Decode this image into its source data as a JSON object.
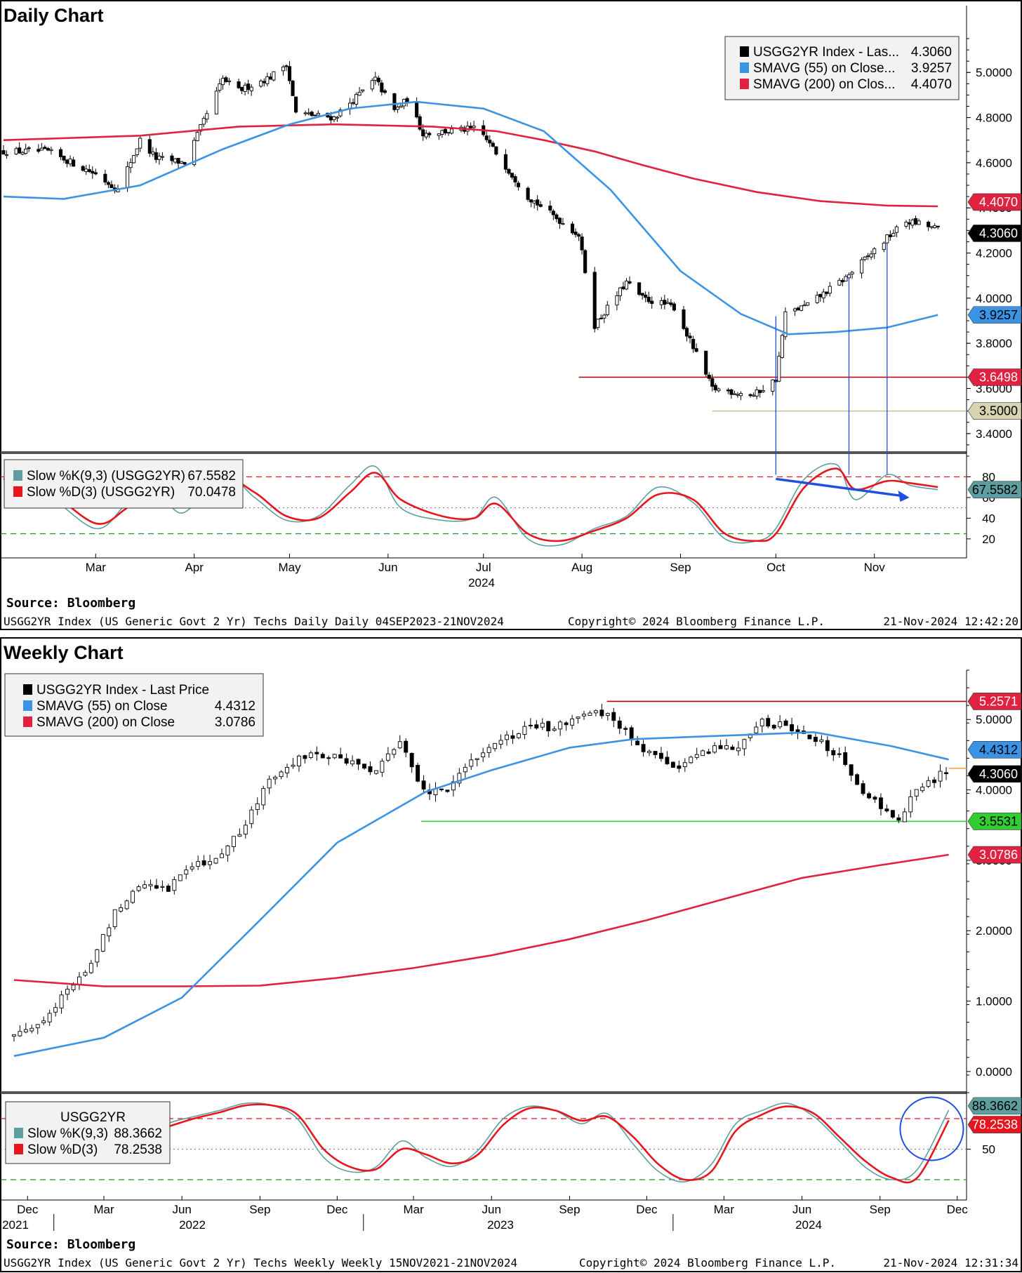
{
  "daily": {
    "title": "Daily Chart",
    "source": "Source:  Bloomberg",
    "footer_left": "USGG2YR Index (US Generic Govt 2 Yr) Techs Daily  Daily 04SEP2023-21NOV2024",
    "footer_mid": "Copyright© 2024 Bloomberg Finance L.P.",
    "footer_right": "21-Nov-2024 12:42:20",
    "year_label": "2024",
    "legend": [
      {
        "label": "USGG2YR Index - Las...",
        "value": "4.3060",
        "color": "#000000"
      },
      {
        "label": "SMAVG (55)  on Close...",
        "value": "3.9257",
        "color": "#3b93e6"
      },
      {
        "label": "SMAVG (200)  on Clos...",
        "value": "4.4070",
        "color": "#e0213f"
      }
    ],
    "osc_legend": [
      {
        "label": "Slow %K(9,3) (USGG2YR)",
        "value": "67.5582",
        "color": "#5f9ea0"
      },
      {
        "label": "Slow %D(3) (USGG2YR)",
        "value": "70.0478",
        "color": "#e8141e"
      }
    ],
    "tags": [
      {
        "text": "4.4070",
        "value": 4.407,
        "bg": "#e0213f",
        "fg": "#ffffff"
      },
      {
        "text": "4.3060",
        "value": 4.306,
        "bg": "#000000",
        "fg": "#ffffff"
      },
      {
        "text": "3.9257",
        "value": 3.9257,
        "bg": "#3b93e6",
        "fg": "#000000"
      },
      {
        "text": "3.6498",
        "value": 3.6498,
        "bg": "#e0213f",
        "fg": "#ffffff"
      },
      {
        "text": "3.5000",
        "value": 3.5,
        "bg": "#d8d3b0",
        "fg": "#000000"
      }
    ],
    "osc_tag": {
      "text": "67.5582",
      "value": 67.5582,
      "bg": "#5f9ea0",
      "fg": "#000000"
    }
  },
  "weekly": {
    "title": "Weekly Chart",
    "source": "Source:  Bloomberg",
    "footer_left": "USGG2YR Index (US Generic Govt 2 Yr) Techs Weekly  Weekly 15NOV2021-21NOV2024",
    "footer_mid": "Copyright© 2024 Bloomberg Finance L.P.",
    "footer_right": "21-Nov-2024 12:31:34",
    "legend": [
      {
        "label": "USGG2YR Index - Last Price",
        "value": "",
        "color": "#000000"
      },
      {
        "label": "SMAVG (55)  on Close",
        "value": "4.4312",
        "color": "#3b93e6"
      },
      {
        "label": "SMAVG (200)  on Close",
        "value": "3.0786",
        "color": "#e0213f"
      }
    ],
    "osc_title": "USGG2YR",
    "osc_legend": [
      {
        "label": "Slow %K(9,3)",
        "value": "88.3662",
        "color": "#5f9ea0"
      },
      {
        "label": "Slow %D(3)",
        "value": "78.2538",
        "color": "#e8141e"
      }
    ],
    "tags": [
      {
        "text": "5.2571",
        "value": 5.2571,
        "bg": "#e0213f",
        "fg": "#ffffff"
      },
      {
        "text": "4.4312",
        "value": 4.4312,
        "bg": "#3b93e6",
        "fg": "#000000"
      },
      {
        "text": "4.3060",
        "value": 4.306,
        "bg": "#000000",
        "fg": "#ffffff"
      },
      {
        "text": "3.5531",
        "value": 3.5531,
        "bg": "#33cc33",
        "fg": "#000000"
      },
      {
        "text": "3.0786",
        "value": 3.0786,
        "bg": "#e0213f",
        "fg": "#ffffff"
      }
    ],
    "osc_tags": [
      {
        "text": "88.3662",
        "value": 88.3662,
        "bg": "#5f9ea0",
        "fg": "#000000"
      },
      {
        "text": "78.2538",
        "value": 78.2538,
        "bg": "#e8141e",
        "fg": "#ffffff"
      }
    ]
  },
  "chart_data": [
    {
      "type": "line",
      "subtype": "candlestick",
      "title": "Daily Chart",
      "ylim": [
        3.3,
        5.15
      ],
      "yticks": [
        "3.4000",
        "3.6000",
        "3.8000",
        "4.0000",
        "4.2000",
        "4.4000",
        "4.6000",
        "4.8000",
        "5.0000"
      ],
      "xtick_labels": [
        "Mar",
        "Apr",
        "May",
        "Jun",
        "Jul",
        "Aug",
        "Sep",
        "Oct",
        "Nov"
      ],
      "x_year": "2024",
      "series": [
        {
          "name": "USGG2YR Index - Last Price",
          "role": "price",
          "dates": [
            "2024-02-15",
            "2024-03-01",
            "2024-03-08",
            "2024-03-15",
            "2024-03-20",
            "2024-03-29",
            "2024-04-10",
            "2024-04-15",
            "2024-04-25",
            "2024-04-30",
            "2024-05-03",
            "2024-05-15",
            "2024-05-28",
            "2024-06-03",
            "2024-06-07",
            "2024-06-12",
            "2024-06-28",
            "2024-07-01",
            "2024-07-15",
            "2024-07-31",
            "2024-08-05",
            "2024-08-15",
            "2024-08-20",
            "2024-08-30",
            "2024-09-11",
            "2024-09-24",
            "2024-10-01",
            "2024-10-04",
            "2024-10-11",
            "2024-10-23",
            "2024-11-06",
            "2024-11-11",
            "2024-11-15",
            "2024-11-21"
          ],
          "close": [
            4.65,
            4.55,
            4.48,
            4.7,
            4.62,
            4.6,
            4.97,
            4.92,
            4.98,
            5.04,
            4.82,
            4.8,
            4.97,
            4.83,
            4.88,
            4.73,
            4.75,
            4.72,
            4.45,
            4.28,
            3.88,
            4.07,
            4.0,
            3.96,
            3.6,
            3.57,
            3.64,
            3.93,
            3.97,
            4.09,
            4.28,
            4.34,
            4.33,
            4.306
          ]
        },
        {
          "name": "SMAVG (55) on Close",
          "role": "sma55",
          "dates": [
            "2024-02-01",
            "2024-02-20",
            "2024-03-15",
            "2024-04-10",
            "2024-05-01",
            "2024-05-20",
            "2024-06-10",
            "2024-07-01",
            "2024-07-20",
            "2024-08-10",
            "2024-09-01",
            "2024-09-20",
            "2024-10-05",
            "2024-10-20",
            "2024-11-05",
            "2024-11-21"
          ],
          "values": [
            4.45,
            4.44,
            4.5,
            4.66,
            4.77,
            4.84,
            4.87,
            4.84,
            4.74,
            4.48,
            4.12,
            3.93,
            3.84,
            3.85,
            3.87,
            3.9257
          ]
        },
        {
          "name": "SMAVG (200) on Close",
          "role": "sma200",
          "dates": [
            "2024-02-01",
            "2024-03-15",
            "2024-04-15",
            "2024-05-15",
            "2024-06-15",
            "2024-07-05",
            "2024-07-20",
            "2024-08-05",
            "2024-08-20",
            "2024-09-05",
            "2024-09-25",
            "2024-10-15",
            "2024-11-05",
            "2024-11-21"
          ],
          "values": [
            4.7,
            4.72,
            4.76,
            4.77,
            4.76,
            4.74,
            4.7,
            4.65,
            4.59,
            4.53,
            4.47,
            4.43,
            4.41,
            4.407
          ]
        }
      ],
      "annotations": [
        {
          "type": "hline",
          "value": 3.6498,
          "from": "2024-07-31",
          "color": "#b00000"
        },
        {
          "type": "hline",
          "value": 3.5,
          "from": "2024-09-11",
          "color": "#c8c49a"
        }
      ],
      "oscillator": {
        "ylim": [
          5,
          100
        ],
        "yticks": [
          "20",
          "40",
          "60",
          "80"
        ],
        "overbought": 80,
        "mid": 50,
        "oversold": 25,
        "dates": [
          "2024-02-01",
          "2024-02-15",
          "2024-03-01",
          "2024-03-10",
          "2024-03-18",
          "2024-03-28",
          "2024-04-10",
          "2024-04-20",
          "2024-04-30",
          "2024-05-10",
          "2024-05-20",
          "2024-05-28",
          "2024-06-05",
          "2024-06-18",
          "2024-06-28",
          "2024-07-05",
          "2024-07-15",
          "2024-07-25",
          "2024-08-05",
          "2024-08-15",
          "2024-08-25",
          "2024-09-05",
          "2024-09-15",
          "2024-09-25",
          "2024-10-01",
          "2024-10-10",
          "2024-10-20",
          "2024-10-26",
          "2024-11-05",
          "2024-11-12",
          "2024-11-21"
        ],
        "slow_k": [
          80,
          62,
          30,
          52,
          78,
          45,
          82,
          60,
          38,
          42,
          72,
          90,
          50,
          38,
          40,
          60,
          20,
          14,
          30,
          42,
          70,
          55,
          20,
          18,
          30,
          78,
          92,
          58,
          82,
          72,
          67.5582
        ],
        "slow_d": [
          78,
          66,
          35,
          48,
          70,
          52,
          78,
          65,
          42,
          40,
          65,
          84,
          58,
          42,
          40,
          54,
          25,
          18,
          28,
          40,
          63,
          58,
          25,
          18,
          25,
          70,
          88,
          68,
          76,
          74,
          70.0478
        ],
        "arrow": {
          "from": [
            "2024-10-01",
            78
          ],
          "to": [
            "2024-11-12",
            60
          ],
          "color": "#1f4fe0"
        }
      }
    },
    {
      "type": "line",
      "subtype": "candlestick",
      "title": "Weekly Chart",
      "ylim": [
        -0.3,
        5.7
      ],
      "yticks": [
        "0.0000",
        "1.0000",
        "2.0000",
        "3.0000",
        "4.0000",
        "5.0000"
      ],
      "xtick_labels": [
        "Dec",
        "Mar",
        "Jun",
        "Sep",
        "Dec",
        "Mar",
        "Jun",
        "Sep",
        "Dec",
        "Mar",
        "Jun",
        "Sep",
        "Dec"
      ],
      "year_labels": [
        "2021",
        "2022",
        "2023",
        "2024"
      ],
      "series": [
        {
          "name": "USGG2YR Index - Last Price",
          "role": "price",
          "dates": [
            "2021-11-15",
            "2021-12-15",
            "2022-01-15",
            "2022-02-15",
            "2022-03-15",
            "2022-04-15",
            "2022-05-15",
            "2022-06-15",
            "2022-07-15",
            "2022-08-15",
            "2022-09-15",
            "2022-10-15",
            "2022-11-15",
            "2022-12-15",
            "2023-01-15",
            "2023-02-15",
            "2023-03-10",
            "2023-03-20",
            "2023-04-15",
            "2023-05-15",
            "2023-06-15",
            "2023-07-15",
            "2023-08-15",
            "2023-09-15",
            "2023-10-15",
            "2023-11-15",
            "2023-12-15",
            "2024-01-15",
            "2024-02-15",
            "2024-03-15",
            "2024-04-15",
            "2024-05-15",
            "2024-06-15",
            "2024-07-15",
            "2024-08-15",
            "2024-09-20",
            "2024-10-15",
            "2024-11-21"
          ],
          "close": [
            0.52,
            0.7,
            1.1,
            1.55,
            2.3,
            2.7,
            2.6,
            2.95,
            3.05,
            3.5,
            4.2,
            4.45,
            4.5,
            4.4,
            4.25,
            4.7,
            4.05,
            3.95,
            4.05,
            4.5,
            4.7,
            4.88,
            4.9,
            5.1,
            5.05,
            4.7,
            4.4,
            4.35,
            4.6,
            4.6,
            4.95,
            4.92,
            4.75,
            4.45,
            3.95,
            3.55,
            3.99,
            4.306
          ]
        },
        {
          "name": "SMAVG (55) on Close",
          "role": "sma55",
          "dates": [
            "2021-11-15",
            "2022-03-01",
            "2022-06-01",
            "2022-09-01",
            "2022-12-01",
            "2023-03-15",
            "2023-06-01",
            "2023-09-01",
            "2023-11-15",
            "2024-03-01",
            "2024-06-15",
            "2024-09-15",
            "2024-11-21"
          ],
          "values": [
            0.22,
            0.48,
            1.05,
            2.15,
            3.25,
            3.97,
            4.28,
            4.6,
            4.72,
            4.77,
            4.82,
            4.62,
            4.4312
          ]
        },
        {
          "name": "SMAVG (200) on Close",
          "role": "sma200",
          "dates": [
            "2021-11-15",
            "2022-03-01",
            "2022-06-01",
            "2022-09-01",
            "2022-12-01",
            "2023-03-01",
            "2023-06-01",
            "2023-09-01",
            "2023-12-01",
            "2024-03-01",
            "2024-06-01",
            "2024-09-01",
            "2024-11-21"
          ],
          "values": [
            1.3,
            1.21,
            1.21,
            1.22,
            1.33,
            1.47,
            1.65,
            1.88,
            2.15,
            2.45,
            2.75,
            2.93,
            3.0786
          ]
        }
      ],
      "annotations": [
        {
          "type": "hline",
          "value": 5.2571,
          "from": "2023-10-15",
          "color": "#b00000"
        },
        {
          "type": "hline",
          "value": 3.5531,
          "from": "2023-03-10",
          "color": "#33cc33"
        },
        {
          "type": "hline",
          "value": 4.306,
          "from": "2024-11-21",
          "color": "#f0a030"
        }
      ],
      "oscillator": {
        "ylim": [
          0,
          100
        ],
        "yticks": [
          "50"
        ],
        "overbought": 80,
        "mid": 50,
        "oversold": 20,
        "dates": [
          "2021-11-15",
          "2021-12-15",
          "2022-01-15",
          "2022-02-15",
          "2022-03-15",
          "2022-04-15",
          "2022-05-15",
          "2022-06-15",
          "2022-07-15",
          "2022-08-15",
          "2022-09-15",
          "2022-10-15",
          "2022-11-15",
          "2022-12-15",
          "2023-01-15",
          "2023-02-15",
          "2023-03-15",
          "2023-04-15",
          "2023-05-15",
          "2023-06-15",
          "2023-07-15",
          "2023-08-15",
          "2023-09-15",
          "2023-10-15",
          "2023-11-15",
          "2023-12-15",
          "2024-01-15",
          "2024-02-15",
          "2024-03-15",
          "2024-04-15",
          "2024-05-15",
          "2024-06-15",
          "2024-07-15",
          "2024-08-15",
          "2024-09-15",
          "2024-10-15",
          "2024-11-21"
        ],
        "slow_k": [
          88,
          95,
          92,
          82,
          78,
          60,
          75,
          82,
          88,
          95,
          93,
          80,
          42,
          28,
          32,
          58,
          42,
          33,
          48,
          80,
          92,
          88,
          75,
          85,
          55,
          28,
          18,
          35,
          75,
          88,
          95,
          82,
          58,
          32,
          20,
          30,
          88.3662
        ],
        "slow_d": [
          85,
          92,
          90,
          84,
          80,
          65,
          72,
          80,
          86,
          93,
          93,
          84,
          50,
          33,
          30,
          50,
          45,
          36,
          44,
          74,
          90,
          88,
          78,
          82,
          62,
          35,
          20,
          28,
          68,
          84,
          92,
          85,
          62,
          38,
          22,
          22,
          78.2538
        ],
        "circle_center": [
          "2024-11-01",
          70
        ]
      }
    }
  ]
}
